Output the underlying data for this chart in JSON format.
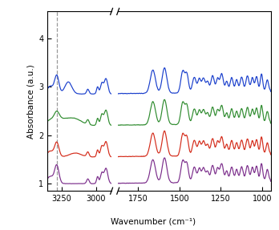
{
  "colors": {
    "purple": "#7B2D8B",
    "red": "#D42B1A",
    "green": "#2E8B2E",
    "blue": "#1A3FCC"
  },
  "base_offsets": {
    "purple": 1.0,
    "red": 1.55,
    "green": 2.2,
    "blue": 2.85
  },
  "dashed_line_x": 3283,
  "ylim": [
    0.85,
    4.55
  ],
  "yticks": [
    1,
    2,
    3,
    4
  ],
  "xlabel": "Wavenumber (cm⁻¹)",
  "ylabel": "Absorbance (a.u.)",
  "left_xlim": [
    3350,
    2890
  ],
  "right_xlim": [
    1870,
    950
  ],
  "left_xticks": [
    3250,
    3000
  ],
  "right_xticks": [
    1750,
    1500,
    1250,
    1000
  ],
  "background_color": "#ffffff",
  "linewidth": 0.85
}
